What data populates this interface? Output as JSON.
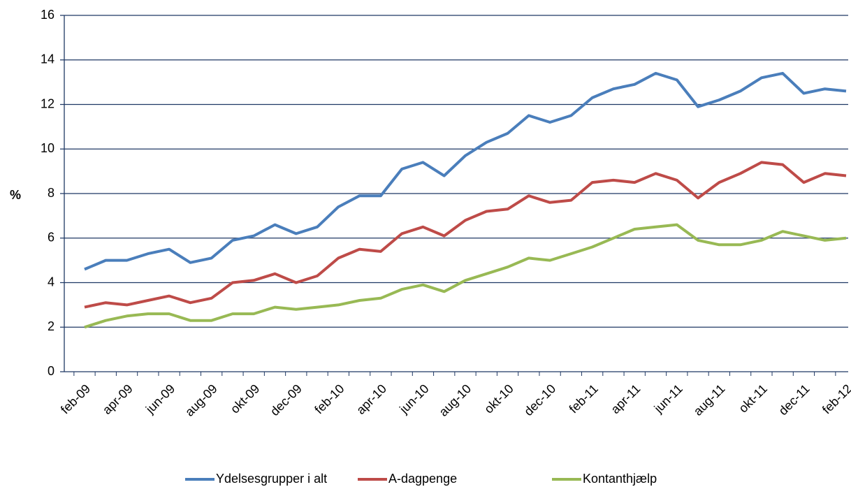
{
  "chart_data": {
    "type": "line",
    "y_label": "%",
    "categories": [
      "feb-09",
      null,
      "apr-09",
      null,
      "jun-09",
      null,
      "aug-09",
      null,
      "okt-09",
      null,
      "dec-09",
      null,
      "feb-10",
      null,
      "apr-10",
      null,
      "jun-10",
      null,
      "aug-10",
      null,
      "okt-10",
      null,
      "dec-10",
      null,
      "feb-11",
      null,
      "apr-11",
      null,
      "jun-11",
      null,
      "aug-11",
      null,
      "okt-11",
      null,
      "dec-11",
      null,
      "feb-12"
    ],
    "series": [
      {
        "name": "Ydelsesgrupper i alt",
        "color": "#4a7ebb",
        "values": [
          4.6,
          5.0,
          5.0,
          5.3,
          5.5,
          4.9,
          5.1,
          5.9,
          6.1,
          6.6,
          6.2,
          6.5,
          7.4,
          7.9,
          7.9,
          9.1,
          9.4,
          8.8,
          9.7,
          10.3,
          10.7,
          11.5,
          11.2,
          11.5,
          12.3,
          12.7,
          12.9,
          13.4,
          13.1,
          11.9,
          12.2,
          12.6,
          13.2,
          13.4,
          12.5,
          12.7,
          12.6
        ]
      },
      {
        "name": "A-dagpenge",
        "color": "#be4b48",
        "values": [
          2.9,
          3.1,
          3.0,
          3.2,
          3.4,
          3.1,
          3.3,
          4.0,
          4.1,
          4.4,
          4.0,
          4.3,
          5.1,
          5.5,
          5.4,
          6.2,
          6.5,
          6.1,
          6.8,
          7.2,
          7.3,
          7.9,
          7.6,
          7.7,
          8.5,
          8.6,
          8.5,
          8.9,
          8.6,
          7.8,
          8.5,
          8.9,
          9.4,
          9.3,
          8.5,
          8.9,
          8.8
        ]
      },
      {
        "name": "Kontanthjælp",
        "color": "#98b954",
        "values": [
          2.0,
          2.3,
          2.5,
          2.6,
          2.6,
          2.3,
          2.3,
          2.6,
          2.6,
          2.9,
          2.8,
          2.9,
          3.0,
          3.2,
          3.3,
          3.7,
          3.9,
          3.6,
          4.1,
          4.4,
          4.7,
          5.1,
          5.0,
          5.3,
          5.6,
          6.0,
          6.4,
          6.5,
          6.6,
          5.9,
          5.7,
          5.7,
          5.9,
          6.3,
          6.1,
          5.9,
          6.0
        ]
      }
    ],
    "ylim": [
      0,
      16
    ],
    "yticks": [
      0,
      2,
      4,
      6,
      8,
      10,
      12,
      14,
      16
    ],
    "grid": true
  }
}
